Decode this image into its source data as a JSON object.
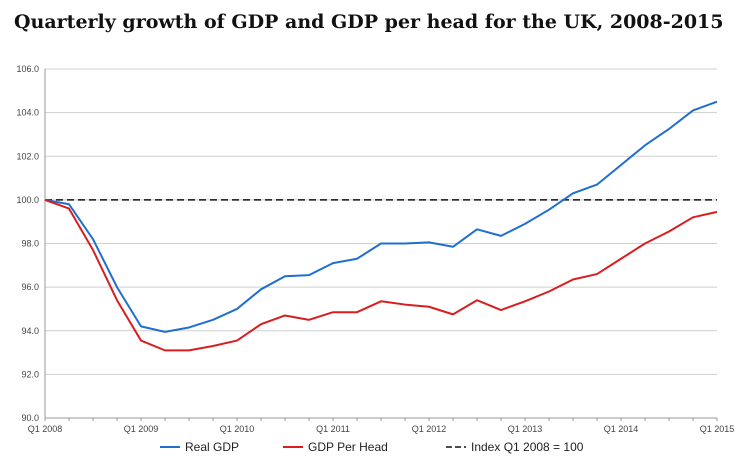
{
  "chart_data": {
    "type": "line",
    "title": "Quarterly growth of GDP and GDP per head for the UK, 2008-2015",
    "xlabel": "",
    "ylabel": "",
    "x": [
      "Q1 2008",
      "Q2 2008",
      "Q3 2008",
      "Q4 2008",
      "Q1 2009",
      "Q2 2009",
      "Q3 2009",
      "Q4 2009",
      "Q1 2010",
      "Q2 2010",
      "Q3 2010",
      "Q4 2010",
      "Q1 2011",
      "Q2 2011",
      "Q3 2011",
      "Q4 2011",
      "Q1 2012",
      "Q2 2012",
      "Q3 2012",
      "Q4 2012",
      "Q1 2013",
      "Q2 2013",
      "Q3 2013",
      "Q4 2013",
      "Q1 2014",
      "Q2 2014",
      "Q3 2014",
      "Q4 2014",
      "Q1 2015"
    ],
    "x_tick_labels": [
      "Q1 2008",
      "Q1 2009",
      "Q1 2010",
      "Q1 2011",
      "Q1 2012",
      "Q1 2013",
      "Q1 2014",
      "Q1 2015"
    ],
    "y_tick_labels": [
      "90.0",
      "92.0",
      "94.0",
      "96.0",
      "98.0",
      "100.0",
      "102.0",
      "104.0",
      "106.0"
    ],
    "ylim": [
      90,
      106
    ],
    "grid": true,
    "legend_position": "bottom",
    "series": [
      {
        "name": "Real GDP",
        "color": "#1f6fcf",
        "style": "solid",
        "values": [
          100.0,
          99.8,
          98.2,
          96.0,
          94.2,
          93.95,
          94.15,
          94.5,
          95.0,
          95.9,
          96.5,
          96.55,
          97.1,
          97.3,
          98.0,
          98.0,
          98.05,
          97.85,
          98.65,
          98.35,
          98.9,
          99.55,
          100.3,
          100.7,
          101.6,
          102.5,
          103.25,
          104.1,
          104.5
        ]
      },
      {
        "name": "GDP Per Head",
        "color": "#d81e1e",
        "style": "solid",
        "values": [
          100.0,
          99.6,
          97.7,
          95.4,
          93.55,
          93.1,
          93.1,
          93.3,
          93.55,
          94.3,
          94.7,
          94.5,
          94.85,
          94.85,
          95.35,
          95.2,
          95.1,
          94.75,
          95.4,
          94.95,
          95.35,
          95.8,
          96.35,
          96.6,
          97.3,
          98.0,
          98.55,
          99.2,
          99.45
        ]
      },
      {
        "name": "Index Q1 2008 = 100",
        "color": "#111111",
        "style": "dashed",
        "values": [
          100,
          100,
          100,
          100,
          100,
          100,
          100,
          100,
          100,
          100,
          100,
          100,
          100,
          100,
          100,
          100,
          100,
          100,
          100,
          100,
          100,
          100,
          100,
          100,
          100,
          100,
          100,
          100,
          100
        ]
      }
    ]
  }
}
